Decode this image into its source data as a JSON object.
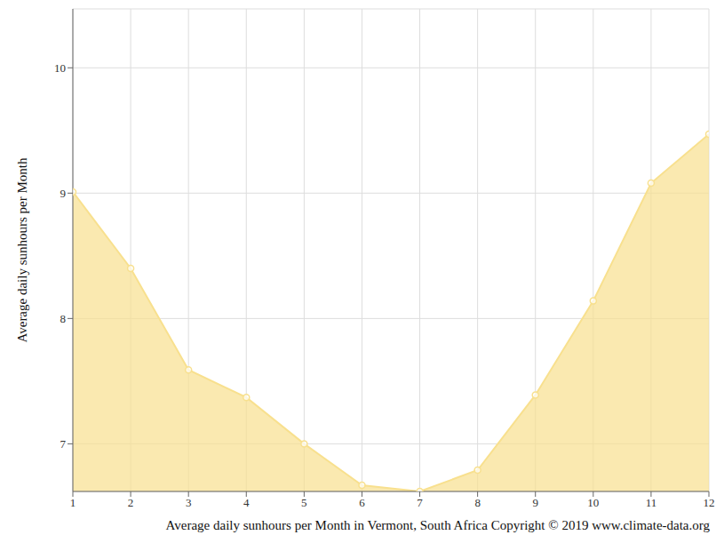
{
  "chart_data": {
    "type": "area",
    "title": "Average daily sunhours per Month in Vermont, South Africa Copyright © 2019 www.climate-data.org",
    "y_label": "Average daily sunhours per Month",
    "x": [
      1,
      2,
      3,
      4,
      5,
      6,
      7,
      8,
      9,
      10,
      11,
      12
    ],
    "values": [
      9.01,
      8.4,
      7.59,
      7.37,
      7.0,
      6.67,
      6.62,
      6.79,
      7.39,
      8.14,
      9.08,
      9.47
    ],
    "color": "#f8e08e",
    "xlim": [
      1,
      12
    ],
    "xticks": [
      1,
      2,
      3,
      4,
      5,
      6,
      7,
      8,
      9,
      10,
      11,
      12
    ],
    "ylim": [
      6.62,
      10.47
    ],
    "yticks": [
      7,
      8,
      9,
      10
    ],
    "grid": true,
    "marker": "circle"
  }
}
